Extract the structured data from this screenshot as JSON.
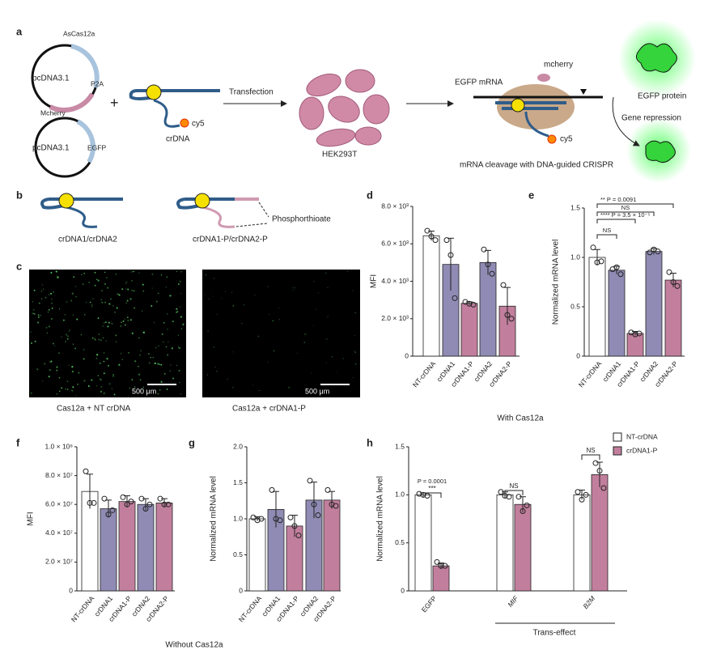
{
  "panel_letters": [
    "a",
    "b",
    "c",
    "d",
    "e",
    "f",
    "g",
    "h"
  ],
  "panel_a": {
    "ascas12a": "AsCas12a",
    "plasmid1": "pcDNA3.1",
    "p2a": "P2A",
    "mcherry": "Mcherry",
    "plus": "+",
    "plasmid2": "pcDNA3.1",
    "egfp": "EGFP",
    "crdna": "crDNA",
    "cy5": "cy5",
    "transfection": "Transfection",
    "cells": "HEK293T",
    "egfp_mrna": "EGFP mRNA",
    "mcherry2": "mcherry",
    "cy5_2": "cy5",
    "egfp_protein": "EGFP protein",
    "gene_repression": "Gene repression",
    "caption": "mRNA cleavage with DNA-guided CRISPR"
  },
  "panel_b": {
    "left": "crDNA1/crDNA2",
    "right": "crDNA1-P/crDNA2-P",
    "modification": "Phosphorthioate"
  },
  "panel_c": {
    "scale_left": "500 μm",
    "scale_right": "500 μm",
    "caption_left": "Cas12a + NT crDNA",
    "caption_right": "Cas12a + crDNA1-P"
  },
  "shared_labels": {
    "with": "With Cas12a",
    "without": "Without Cas12a"
  },
  "chart_data": [
    {
      "type": "bar",
      "ylabel": "MFI",
      "categories": [
        "NT-crDNA",
        "crDNA1",
        "crDNA1-P",
        "crDNA2",
        "crDNA2-P"
      ],
      "colors": [
        "#ffffff",
        "#8f8bb4",
        "#c27f9d",
        "#8f8bb4",
        "#c27f9d"
      ],
      "values": [
        6430,
        4900,
        2820,
        5000,
        2670
      ],
      "errors": [
        250,
        1400,
        80,
        650,
        1000
      ],
      "points": [
        [
          6700,
          6400,
          6200
        ],
        [
          6200,
          5400,
          3100
        ],
        [
          2900,
          2800,
          2750
        ],
        [
          5700,
          4900,
          4400
        ],
        [
          3800,
          2200,
          2000
        ]
      ],
      "ylim": [
        0,
        8000
      ],
      "yticks": [
        0,
        {
          "value": 2000,
          "label": "2.0 × 10³"
        },
        {
          "value": 4000,
          "label": "4.0 × 10³"
        },
        {
          "value": 6000,
          "label": "6.0 × 10³"
        },
        {
          "value": 8000,
          "label": "8.0 × 10³"
        }
      ],
      "annotations": []
    },
    {
      "type": "bar",
      "ylabel": "Normalized mRNA level",
      "categories": [
        "NT-crDNA",
        "crDNA1",
        "crDNA1-P",
        "crDNA2",
        "crDNA2-P"
      ],
      "colors": [
        "#ffffff",
        "#8f8bb4",
        "#c27f9d",
        "#8f8bb4",
        "#c27f9d"
      ],
      "values": [
        1.0,
        0.87,
        0.23,
        1.06,
        0.77
      ],
      "errors": [
        0.08,
        0.04,
        0.02,
        0.03,
        0.07
      ],
      "points": [
        [
          1.1,
          0.95,
          0.96
        ],
        [
          0.88,
          0.9,
          0.83
        ],
        [
          0.24,
          0.22,
          0.23
        ],
        [
          1.05,
          1.08,
          1.06
        ],
        [
          0.85,
          0.75,
          0.71
        ]
      ],
      "ylim": [
        0,
        1.5
      ],
      "yticks": [
        0,
        0.5,
        {
          "value": 1,
          "label": "1.0"
        },
        1.5
      ],
      "annotations": [
        "** P = 0.0091",
        "NS",
        "**** P = 3.5 × 10⁻⁵",
        "NS"
      ]
    },
    {
      "type": "bar",
      "ylabel": "MFI",
      "categories": [
        "NT-crDNA",
        "crDNA1",
        "crDNA1-P",
        "crDNA2",
        "crDNA2-P"
      ],
      "colors": [
        "#ffffff",
        "#8f8bb4",
        "#c27f9d",
        "#8f8bb4",
        "#c27f9d"
      ],
      "values": [
        69000000,
        57000000,
        62000000,
        60000000,
        61000000
      ],
      "errors": [
        12000000,
        6000000,
        4000000,
        4000000,
        3000000
      ],
      "points": [
        [
          83000000,
          61000000,
          61000000
        ],
        [
          64000000,
          53000000,
          56000000
        ],
        [
          65000000,
          60000000,
          62000000
        ],
        [
          64000000,
          57000000,
          60000000
        ],
        [
          64000000,
          60000000,
          60000000
        ]
      ],
      "ylim": [
        0,
        100000000
      ],
      "yticks": [
        0,
        {
          "value": 20000000,
          "label": "2.0 × 10⁷"
        },
        {
          "value": 40000000,
          "label": "4.0 × 10⁷"
        },
        {
          "value": 60000000,
          "label": "6.0 × 10⁷"
        },
        {
          "value": 80000000,
          "label": "8.0 × 10⁷"
        },
        {
          "value": 100000000,
          "label": "1.0 × 10⁸"
        }
      ],
      "annotations": []
    },
    {
      "type": "bar",
      "ylabel": "Normalized mRNA level",
      "categories": [
        "NT-crDNA",
        "crDNA1",
        "crDNA1-P",
        "crDNA2",
        "crDNA2-P"
      ],
      "colors": [
        "#ffffff",
        "#8f8bb4",
        "#c27f9d",
        "#8f8bb4",
        "#c27f9d"
      ],
      "values": [
        1.0,
        1.13,
        0.9,
        1.26,
        1.26
      ],
      "errors": [
        0.03,
        0.25,
        0.15,
        0.25,
        0.12
      ],
      "points": [
        [
          1.02,
          0.98,
          1.0
        ],
        [
          1.4,
          1.0,
          0.98
        ],
        [
          1.02,
          0.9,
          0.77
        ],
        [
          1.53,
          1.2,
          1.05
        ],
        [
          1.4,
          1.2,
          1.18
        ]
      ],
      "ylim": [
        0,
        2
      ],
      "yticks": [
        0,
        0.5,
        {
          "value": 1,
          "label": "1.0"
        },
        1.5,
        {
          "value": 2,
          "label": "2.0"
        }
      ],
      "annotations": []
    },
    {
      "type": "grouped_bar",
      "ylabel": "Normalized mRNA level",
      "xlabel": "Trans-effect",
      "categories": [
        "EGFP",
        "MIF",
        "B2M"
      ],
      "series": [
        {
          "name": "NT-crDNA",
          "color": "#ffffff",
          "values": [
            1.0,
            1.0,
            1.0
          ],
          "errors": [
            0.02,
            0.03,
            0.05
          ],
          "points": [
            [
              1.01,
              1.0,
              0.99
            ],
            [
              1.03,
              0.99,
              0.98
            ],
            [
              1.03,
              0.95,
              1.0
            ]
          ]
        },
        {
          "name": "crDNA1-P",
          "color": "#c27f9d",
          "values": [
            0.26,
            0.9,
            1.21
          ],
          "errors": [
            0.03,
            0.08,
            0.13
          ],
          "points": [
            [
              0.3,
              0.26,
              0.26
            ],
            [
              0.98,
              0.83,
              0.89
            ],
            [
              1.33,
              1.25,
              1.07
            ]
          ]
        }
      ],
      "ylim": [
        0,
        1.5
      ],
      "yticks": [
        0,
        0.5,
        {
          "value": 1,
          "label": "1.0"
        },
        1.5
      ],
      "legend": "top-right",
      "annotations": [
        "P = 0.0001",
        "***",
        "NS",
        "NS"
      ]
    }
  ]
}
